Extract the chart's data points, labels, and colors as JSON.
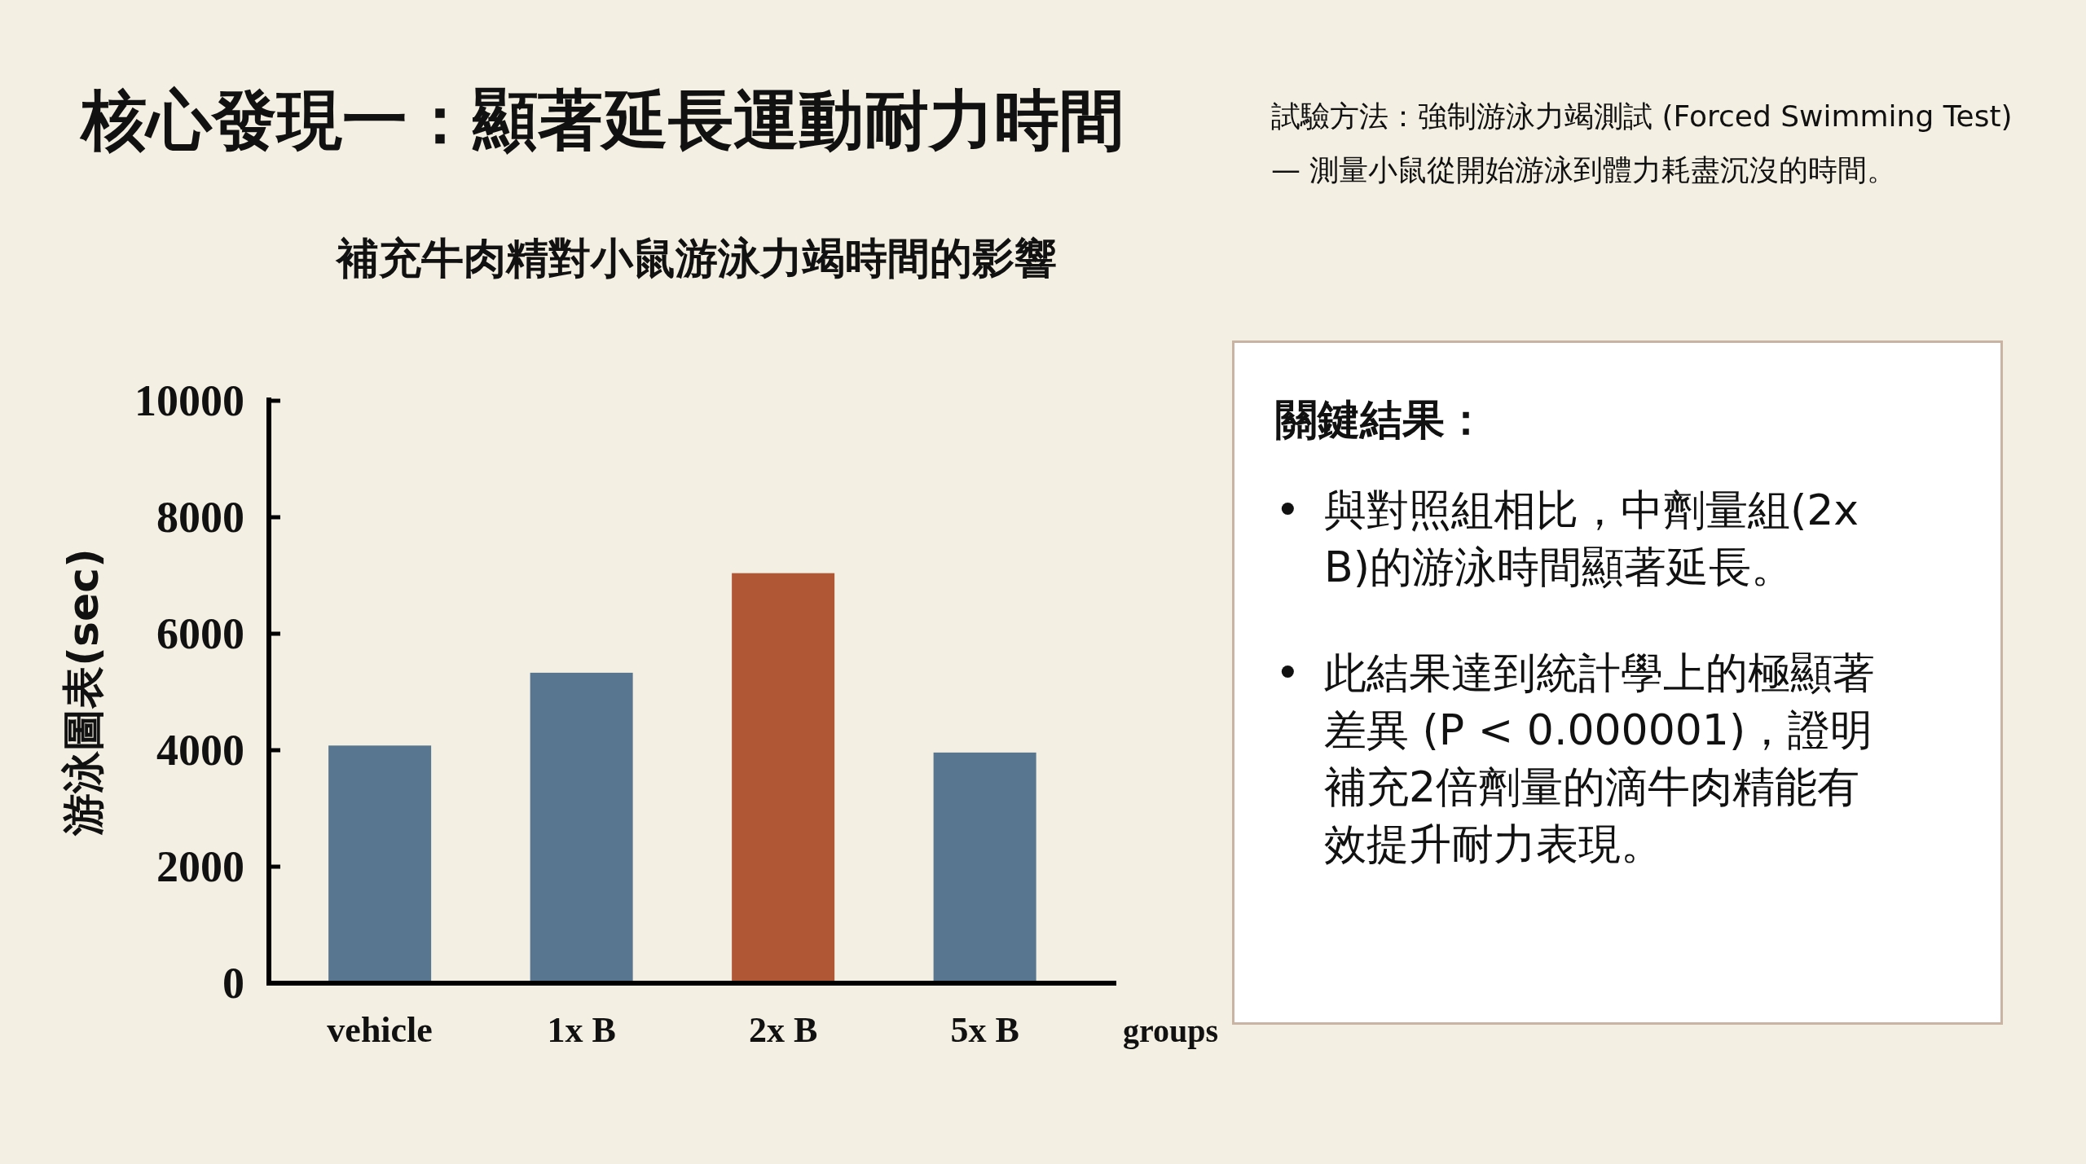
{
  "chart_data": {
    "type": "bar",
    "title": "核心發現一：顯著延長運動耐力時間",
    "subtitle": "補充牛肉精對小鼠游泳力竭時間的影響",
    "xlabel": "groups",
    "ylabel": "游泳圖表(sec)",
    "categories": [
      "vehicle",
      "1x B",
      "2x B",
      "5x B"
    ],
    "values": [
      4080,
      5330,
      7040,
      3960
    ],
    "colors": [
      "#58768f",
      "#58768f",
      "#b05836",
      "#58768f"
    ],
    "ylim": [
      0,
      10000
    ],
    "yticks": [
      0,
      2000,
      4000,
      6000,
      8000,
      10000
    ],
    "grid": false,
    "annotations": [
      "試驗方法：強制游泳力竭測試 (Forced Swimming Test)",
      "— 測量小鼠從開始游泳到體力耗盡沉沒的時間。",
      "關鍵結果：",
      "•\t與對照組相比，中劑量組(2x B)的游泳時間顯著延長。",
      "•\t此結果達到統計學上的極顯著差異 (P < 0.000001)，證明補充2倍劑量的滴牛肉精能有效提升耐力表現。"
    ]
  }
}
